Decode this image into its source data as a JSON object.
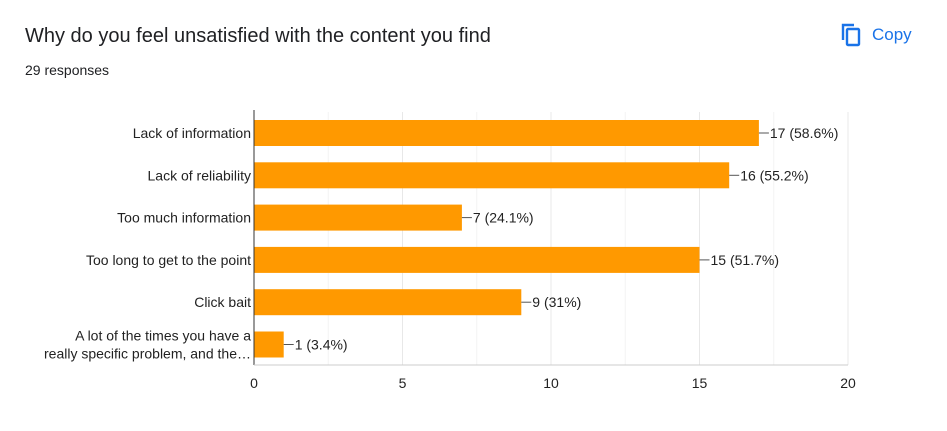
{
  "header": {
    "title": "Why do you feel unsatisfied with the content you find",
    "responses": "29 responses",
    "copy_label": "Copy",
    "copy_icon": "copy-icon"
  },
  "colors": {
    "bar": "#ff9900",
    "accent": "#1a73e8",
    "grid": "#e8e8e8",
    "axis": "#333333"
  },
  "chart_data": {
    "type": "bar",
    "orientation": "horizontal",
    "categories": [
      "Lack of information",
      "Lack of reliability",
      "Too much information",
      "Too long to get to the point",
      "Click bait",
      "A lot of the times you have a really specific problem, and the…"
    ],
    "category_label_lines": [
      [
        "Lack of information"
      ],
      [
        "Lack of reliability"
      ],
      [
        "Too much information"
      ],
      [
        "Too long to get to the point"
      ],
      [
        "Click bait"
      ],
      [
        "A lot of the times you have a",
        "really specific problem, and the…"
      ]
    ],
    "values": [
      17,
      16,
      7,
      15,
      9,
      1
    ],
    "data_labels": [
      "17 (58.6%)",
      "16 (55.2%)",
      "7 (24.1%)",
      "15 (51.7%)",
      "9 (31%)",
      "1 (3.4%)"
    ],
    "xlim": [
      0,
      20
    ],
    "xticks": [
      0,
      5,
      10,
      15,
      20
    ],
    "grid": true,
    "legend": "none"
  }
}
